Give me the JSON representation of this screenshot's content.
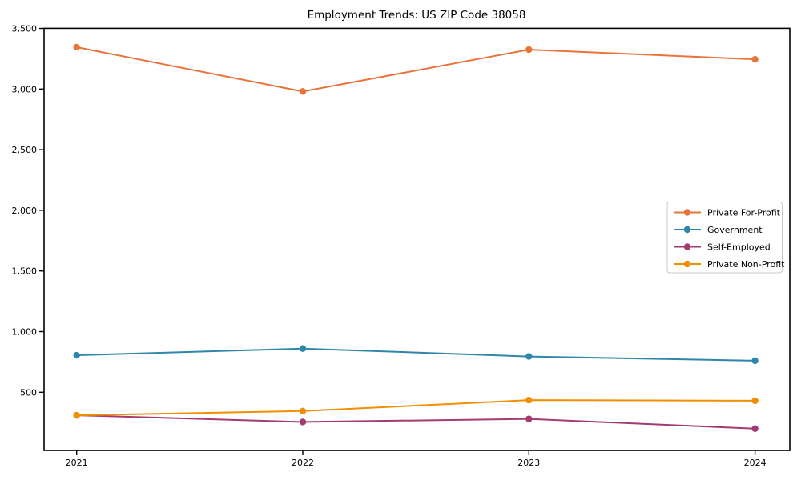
{
  "chart_data": {
    "type": "line",
    "title": "Employment Trends: US ZIP Code 38058",
    "xlabel": "",
    "ylabel": "",
    "grid": false,
    "background_color": "#ffffff",
    "axes_color": "#000000",
    "x": [
      2021,
      2022,
      2023,
      2024
    ],
    "x_tick_labels": [
      "2021",
      "2022",
      "2023",
      "2024"
    ],
    "y_ticks": [
      500,
      1000,
      1500,
      2000,
      2500,
      3000,
      3500
    ],
    "y_tick_labels": [
      "500",
      "1,000",
      "1,500",
      "2,000",
      "2,500",
      "3,000",
      "3,500"
    ],
    "ylim": [
      20,
      3505
    ],
    "xlim": [
      2020.86,
      2024.15
    ],
    "legend_position": "center right",
    "legend_border_color": "#c8c8c8",
    "series": [
      {
        "name": "Private For-Profit",
        "color": "#E8743B",
        "values": [
          3345,
          2980,
          3325,
          3245
        ]
      },
      {
        "name": "Government",
        "color": "#2E86AB",
        "values": [
          805,
          860,
          795,
          760
        ]
      },
      {
        "name": "Self-Employed",
        "color": "#A23B72",
        "values": [
          310,
          255,
          280,
          200
        ]
      },
      {
        "name": "Private Non-Profit",
        "color": "#F18F01",
        "values": [
          310,
          345,
          435,
          430
        ]
      }
    ]
  }
}
